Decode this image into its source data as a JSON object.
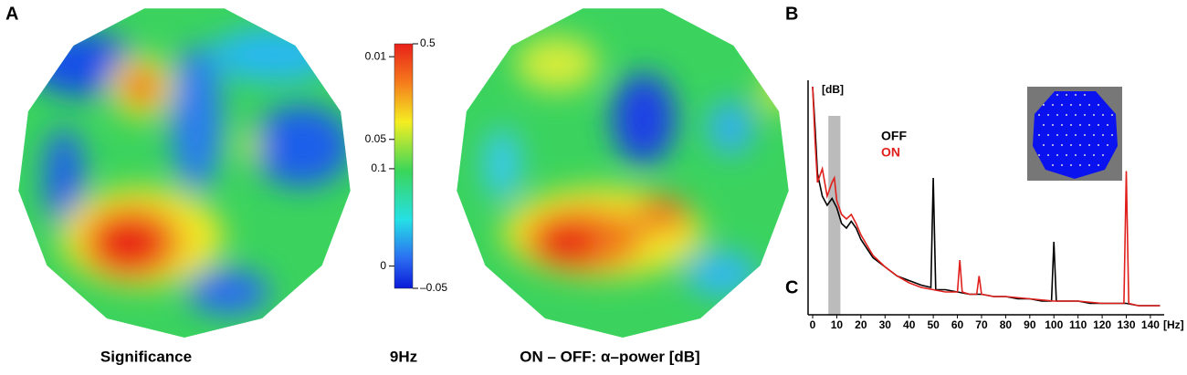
{
  "panel_labels": [
    "A",
    "B",
    "C"
  ],
  "maps": [
    {
      "caption": "Significance"
    },
    {
      "caption": "ON – OFF: α–power [dB]"
    }
  ],
  "colorbar": {
    "caption": "9Hz",
    "lim": [
      -0.05,
      0.5
    ],
    "left_ticks": [
      {
        "value": 0.471,
        "label": "0.01"
      },
      {
        "value": 0.285,
        "label": "0.05"
      },
      {
        "value": 0.219,
        "label": "0.1"
      },
      0
    ],
    "right_ticks": [
      0.5,
      {
        "value": -0.05,
        "label": "–0.05"
      }
    ]
  },
  "chart_data": {
    "type": "line",
    "y_label": "[dB]",
    "x_label": "[Hz]",
    "xlim": [
      -1.9,
      145.7
    ],
    "ylim": [
      0,
      100
    ],
    "xticks": [
      0,
      10,
      20,
      30,
      40,
      50,
      60,
      70,
      80,
      90,
      100,
      110,
      120,
      130,
      140
    ],
    "highlight": [
      6.5,
      11.5
    ],
    "series": [
      {
        "name": "OFF",
        "color": "#000000",
        "x": [
          0,
          1,
          2,
          4,
          6,
          8,
          10,
          12,
          14,
          16,
          18,
          20,
          25,
          30,
          35,
          40,
          45,
          49,
          50,
          51,
          55,
          60,
          65,
          70,
          75,
          80,
          85,
          90,
          95,
          99,
          100,
          101,
          105,
          110,
          115,
          120,
          125,
          130,
          135,
          140,
          144
        ],
        "values": [
          100,
          82,
          62,
          52,
          48,
          51,
          47,
          40,
          38,
          41,
          38,
          33,
          25,
          21,
          17,
          15,
          13,
          12,
          60,
          11,
          11,
          10,
          9,
          9,
          8,
          8,
          7,
          7,
          6,
          6,
          32,
          6,
          6,
          6,
          5,
          5,
          5,
          5,
          4,
          4,
          4
        ]
      },
      {
        "name": "ON",
        "color": "#e0201c",
        "x": [
          0,
          1,
          2,
          4,
          6,
          8,
          9,
          10,
          12,
          14,
          16,
          18,
          20,
          25,
          30,
          35,
          40,
          45,
          50,
          55,
          60,
          61,
          62,
          65,
          68,
          69,
          70,
          75,
          80,
          90,
          100,
          110,
          120,
          129,
          130,
          131,
          135,
          140,
          144
        ],
        "values": [
          100,
          76,
          58,
          64,
          52,
          58,
          60,
          50,
          44,
          42,
          44,
          40,
          35,
          26,
          21,
          17,
          14,
          12,
          11,
          10,
          10,
          24,
          10,
          9,
          9,
          17,
          9,
          8,
          8,
          7,
          6,
          6,
          5,
          5,
          63,
          5,
          4,
          4,
          4
        ]
      }
    ]
  }
}
